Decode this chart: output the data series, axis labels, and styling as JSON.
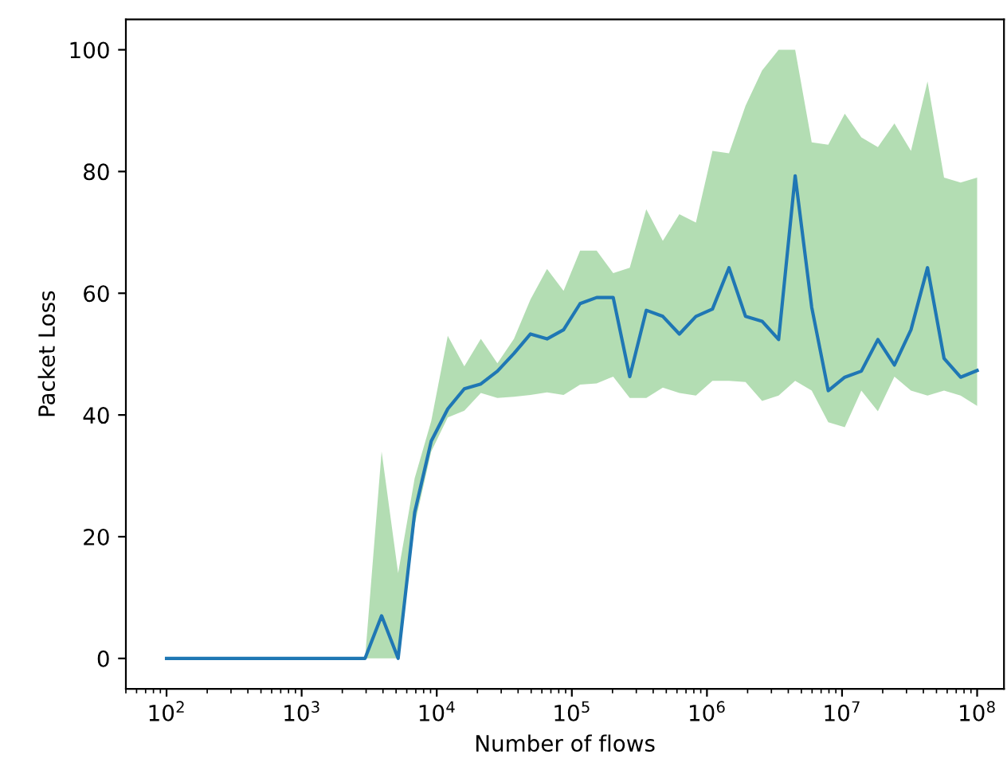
{
  "chart_data": {
    "type": "line",
    "xlabel": "Number of flows",
    "ylabel": "Packet Loss",
    "log": "x",
    "xlim": [
      50,
      158000000
    ],
    "ylim": [
      -5,
      105
    ],
    "xticks": [
      {
        "value": 100,
        "label": "10$^{2}$"
      },
      {
        "value": 1000,
        "label": "10$^{3}$"
      },
      {
        "value": 10000,
        "label": "10$^{4}$"
      },
      {
        "value": 100000,
        "label": "10$^{5}$"
      },
      {
        "value": 1000000,
        "label": "10$^{6}$"
      },
      {
        "value": 10000000,
        "label": "10$^{7}$"
      },
      {
        "value": 100000000,
        "label": "10$^{8}$"
      }
    ],
    "yticks": [
      0,
      20,
      40,
      60,
      80,
      100
    ],
    "grid": false,
    "legend": false,
    "x": [
      100,
      133,
      176,
      233,
      309,
      410,
      543,
      720,
      954,
      1265,
      1677,
      2223,
      2947,
      3907,
      5179,
      6866,
      9103,
      12068,
      15999,
      21210,
      28118,
      37276,
      49417,
      65513,
      86851,
      115140,
      152642,
      202359,
      268270,
      355648,
      471487,
      625055,
      828643,
      1098541,
      1456348,
      1930698,
      2559548,
      3393222,
      4498433,
      5963623,
      7906044,
      10481131,
      13894955,
      18420700,
      24420531,
      32374575,
      42919343,
      56898660,
      75431201,
      100000000
    ],
    "series": [
      {
        "color": "#1f77b4",
        "values": [
          0,
          0,
          0,
          0,
          0,
          0,
          0,
          0,
          0,
          0,
          0,
          0,
          0,
          7,
          0,
          24,
          35.7,
          41,
          44.3,
          45.1,
          47.2,
          50.1,
          53.3,
          52.5,
          54,
          58.3,
          59.3,
          59.3,
          46.3,
          57.2,
          56.2,
          53.3,
          56.2,
          57.4,
          64.2,
          56.2,
          55.4,
          52.4,
          79.3,
          57.7,
          44,
          46.2,
          47.2,
          52.4,
          48.2,
          54,
          64.2,
          49.3,
          46.2,
          47.3
        ],
        "lower": [
          0,
          0,
          0,
          0,
          0,
          0,
          0,
          0,
          0,
          0,
          0,
          0,
          0,
          0,
          0,
          22,
          34,
          39.6,
          40.7,
          43.6,
          42.8,
          43,
          43.3,
          43.7,
          43.3,
          45,
          45.2,
          46.3,
          42.8,
          42.8,
          44.5,
          43.6,
          43.2,
          45.6,
          45.6,
          45.4,
          42.3,
          43.2,
          45.6,
          44,
          38.8,
          38,
          44,
          40.6,
          46.3,
          44,
          43.2,
          44,
          43.2,
          41.5
        ],
        "upper": [
          0,
          0,
          0,
          0,
          0,
          0,
          0,
          0,
          0,
          0,
          0,
          0,
          0,
          34,
          14,
          29.6,
          39,
          53,
          48,
          52.5,
          48.5,
          52.5,
          59,
          64,
          60.4,
          67,
          67,
          63.3,
          64.2,
          73.8,
          68.6,
          73,
          71.6,
          83.4,
          83,
          90.8,
          96.6,
          100,
          100,
          84.8,
          84.4,
          89.5,
          85.6,
          84,
          87.9,
          83.4,
          94.8,
          79,
          78.2,
          79
        ]
      }
    ]
  }
}
